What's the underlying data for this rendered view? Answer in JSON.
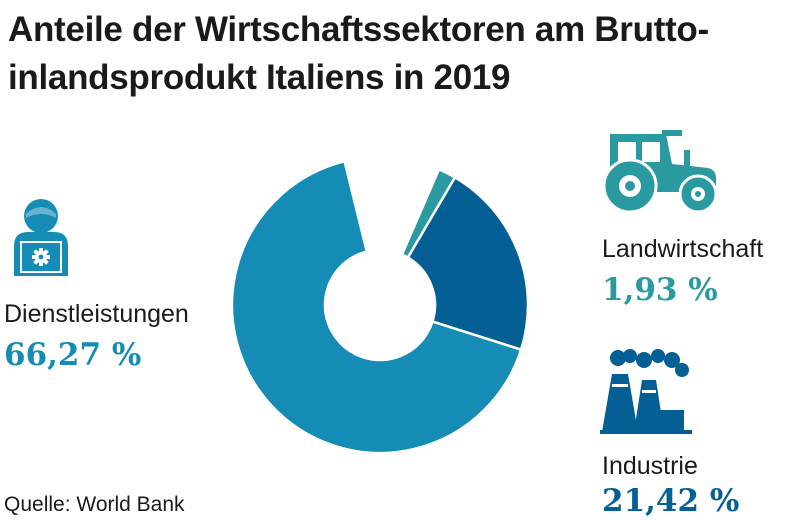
{
  "title": "Anteile der Wirtschaftssektoren am Brutto-inlandsprodukt Italiens in 2019",
  "source": "Quelle: World Bank",
  "colors": {
    "Dienstleistungen": "#158cb5",
    "Landwirtschaft": "#2a9aa0",
    "Industrie": "#045f95"
  },
  "icons": {
    "Dienstleistungen": "person-laptop-gear-icon",
    "Landwirtschaft": "tractor-icon",
    "Industrie": "factory-icon"
  },
  "chart_data": {
    "type": "pie",
    "variant": "donut",
    "title": "Anteile der Wirtschaftssektoren am Brutto-inlandsprodukt Italiens in 2019",
    "unit": "%",
    "series": [
      {
        "name": "Dienstleistungen",
        "value": 66.27,
        "label": "66,27 %"
      },
      {
        "name": "Landwirtschaft",
        "value": 1.93,
        "label": "1,93 %"
      },
      {
        "name": "Industrie",
        "value": 21.42,
        "label": "21,42 %"
      }
    ]
  }
}
